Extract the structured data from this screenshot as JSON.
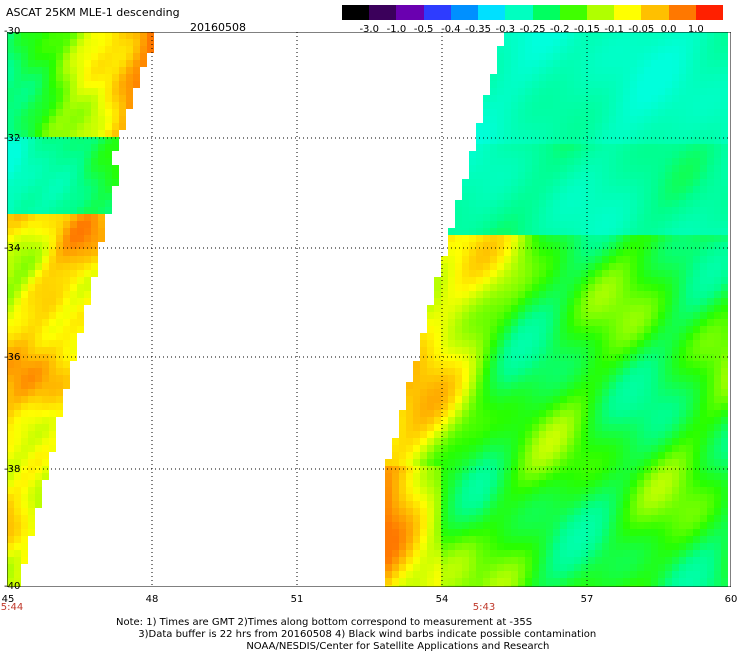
{
  "header": {
    "title": "ASCAT 25KM MLE-1 descending",
    "date": "20160508"
  },
  "colorbar": {
    "labels": [
      "-3.0",
      "-1.0",
      "-0.5",
      "-0.4",
      "-0.35",
      "-0.3",
      "-0.25",
      "-0.2",
      "-0.15",
      "-0.1",
      "-0.05",
      "0.0",
      "1.0"
    ],
    "colors": [
      "#000000",
      "#3b005b",
      "#6a00b0",
      "#2e3cff",
      "#0090ff",
      "#00e0ff",
      "#00ffc0",
      "#00ff60",
      "#40ff00",
      "#b0ff00",
      "#ffff00",
      "#ffc000",
      "#ff7800",
      "#ff2000"
    ]
  },
  "axes": {
    "y_labels": [
      "-30",
      "-32",
      "-34",
      "-36",
      "-38",
      "-40"
    ],
    "x_labels": [
      "45",
      "48",
      "51",
      "54",
      "57",
      "60"
    ]
  },
  "times": {
    "left": "5:44",
    "mid": "5:43"
  },
  "notes": [
    "Note: 1) Times are GMT 2)Times along bottom correspond to measurement at -35S",
    "       3)Data buffer is 22 hrs from 20160508 4) Black wind barbs indicate possible contamination",
    "                                         NOAA/NESDIS/Center for Satellite Applications and Research"
  ]
}
